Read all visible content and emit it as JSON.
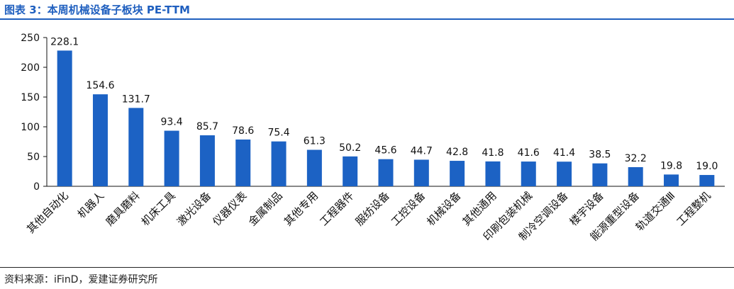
{
  "header": {
    "title": "图表 3：本周机械设备子板块 PE-TTM"
  },
  "footer": {
    "source": "资料来源：iFinD，爱建证券研究所"
  },
  "colors": {
    "bar": "#1c62c4",
    "accent": "#1f5fbf"
  },
  "chart_data": {
    "type": "bar",
    "title": "",
    "xlabel": "",
    "ylabel": "",
    "ylim": [
      0,
      250
    ],
    "yticks": [
      0,
      50,
      100,
      150,
      200,
      250
    ],
    "grid": false,
    "categories": [
      "其他自动化",
      "机器人",
      "磨具磨料",
      "机床工具",
      "激光设备",
      "仪器仪表",
      "金属制品",
      "其他专用",
      "工程器件",
      "服纺设备",
      "工控设备",
      "机械设备",
      "其他通用",
      "印刷包装机械",
      "制冷空调设备",
      "楼宇设备",
      "能源重型设备",
      "轨道交通Ⅲ",
      "工程整机"
    ],
    "values": [
      228.1,
      154.6,
      131.7,
      93.4,
      85.7,
      78.6,
      75.4,
      61.3,
      50.2,
      45.6,
      44.7,
      42.8,
      41.8,
      41.6,
      41.4,
      38.5,
      32.2,
      19.8,
      19.0
    ],
    "value_labels": [
      "228.1",
      "154.6",
      "131.7",
      "93.4",
      "85.7",
      "78.6",
      "75.4",
      "61.3",
      "50.2",
      "45.6",
      "44.7",
      "42.8",
      "41.8",
      "41.6",
      "41.4",
      "38.5",
      "32.2",
      "19.8",
      "19.0"
    ]
  }
}
